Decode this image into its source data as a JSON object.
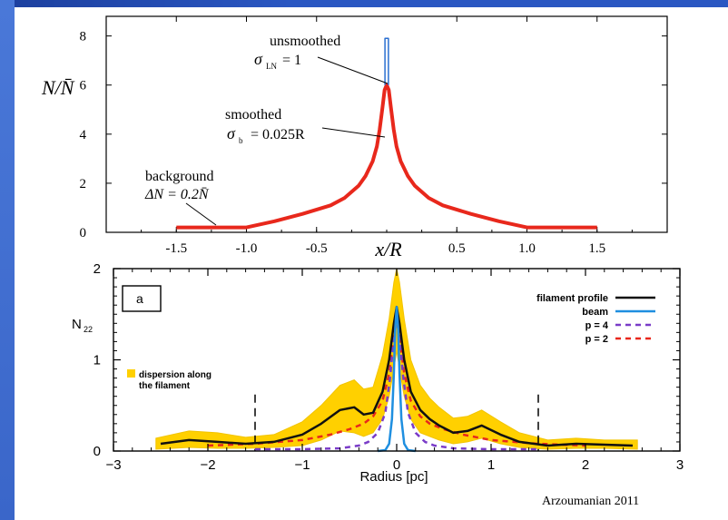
{
  "chart_data": [
    {
      "type": "line",
      "ylabel": "N/N̄",
      "xlabel": "x/R",
      "xlim": [
        -2.0,
        2.0
      ],
      "ylim": [
        0,
        8.8
      ],
      "x_ticks": [
        "-1.5",
        "-1.0",
        "-0.5",
        "0.5",
        "1.0",
        "1.5"
      ],
      "y_ticks": [
        "0",
        "2",
        "4",
        "6",
        "8"
      ],
      "annotations": {
        "unsmoothed": "unsmoothed",
        "sigma_ln": "= 1",
        "smoothed": "smoothed",
        "sigma_b": "= 0.025R",
        "background": "background",
        "delta_n": "ΔN = 0.2N̄"
      },
      "series": [
        {
          "name": "smoothed",
          "color": "#e8281c",
          "x": [
            -1.5,
            -1.2,
            -1.0,
            -0.8,
            -0.6,
            -0.4,
            -0.3,
            -0.2,
            -0.15,
            -0.1,
            -0.07,
            -0.05,
            -0.03,
            -0.015,
            0,
            0.015,
            0.03,
            0.05,
            0.07,
            0.1,
            0.15,
            0.2,
            0.3,
            0.4,
            0.6,
            0.8,
            1.0,
            1.2,
            1.5
          ],
          "y": [
            0.2,
            0.2,
            0.2,
            0.45,
            0.75,
            1.1,
            1.4,
            1.9,
            2.3,
            2.9,
            3.5,
            4.2,
            5.1,
            5.8,
            6.0,
            5.8,
            5.1,
            4.2,
            3.5,
            2.9,
            2.3,
            1.9,
            1.4,
            1.1,
            0.75,
            0.45,
            0.2,
            0.2,
            0.2
          ]
        },
        {
          "name": "unsmoothed",
          "color": "#2a6fd0",
          "x": [
            -0.012,
            -0.012,
            0.012,
            0.012
          ],
          "y": [
            6.0,
            7.9,
            7.9,
            6.0
          ]
        }
      ]
    },
    {
      "type": "line",
      "xlabel": "Radius [pc]",
      "ylabel": "N",
      "ylabel_sub": "22",
      "xlim": [
        -3,
        3
      ],
      "ylim": [
        0,
        2
      ],
      "x_ticks": [
        "−3",
        "−2",
        "−1",
        "0",
        "1",
        "2",
        "3"
      ],
      "y_ticks": [
        "0",
        "1",
        "2"
      ],
      "panel_label": "a",
      "dispersion_label_1": "dispersion along",
      "dispersion_label_2": "the filament",
      "vlines_x": [
        -1.5,
        1.5
      ],
      "series": [
        {
          "name": "filament profile",
          "color": "#111111",
          "dash": "",
          "x": [
            -2.5,
            -2.2,
            -1.9,
            -1.6,
            -1.3,
            -1.0,
            -0.8,
            -0.6,
            -0.45,
            -0.35,
            -0.25,
            -0.15,
            -0.08,
            -0.03,
            0,
            0.03,
            0.08,
            0.15,
            0.25,
            0.35,
            0.45,
            0.6,
            0.75,
            0.9,
            1.1,
            1.3,
            1.6,
            1.9,
            2.2,
            2.5
          ],
          "y": [
            0.08,
            0.12,
            0.1,
            0.08,
            0.1,
            0.18,
            0.3,
            0.45,
            0.48,
            0.4,
            0.42,
            0.65,
            1.0,
            1.4,
            1.58,
            1.4,
            1.0,
            0.65,
            0.45,
            0.35,
            0.28,
            0.2,
            0.22,
            0.28,
            0.18,
            0.1,
            0.06,
            0.08,
            0.07,
            0.06
          ]
        },
        {
          "name": "beam",
          "color": "#1f8fe0",
          "dash": "",
          "x": [
            -0.2,
            -0.12,
            -0.08,
            -0.05,
            -0.03,
            -0.015,
            0,
            0.015,
            0.03,
            0.05,
            0.08,
            0.12,
            0.2
          ],
          "y": [
            0,
            0.01,
            0.08,
            0.35,
            0.85,
            1.35,
            1.58,
            1.35,
            0.85,
            0.35,
            0.08,
            0.01,
            0
          ]
        },
        {
          "name": "p = 4",
          "color": "#7a3cc8",
          "dash": "6,5",
          "x": [
            -1.5,
            -1.0,
            -0.6,
            -0.4,
            -0.3,
            -0.2,
            -0.12,
            -0.07,
            -0.03,
            0,
            0.03,
            0.07,
            0.12,
            0.2,
            0.3,
            0.4,
            0.6,
            1.0,
            1.5
          ],
          "y": [
            0.02,
            0.02,
            0.03,
            0.06,
            0.1,
            0.2,
            0.42,
            0.8,
            1.25,
            1.45,
            1.25,
            0.8,
            0.42,
            0.2,
            0.1,
            0.06,
            0.03,
            0.02,
            0.02
          ]
        },
        {
          "name": "p = 2",
          "color": "#e8281c",
          "dash": "6,5",
          "x": [
            -2.0,
            -1.5,
            -1.0,
            -0.7,
            -0.5,
            -0.35,
            -0.25,
            -0.15,
            -0.08,
            -0.03,
            0,
            0.03,
            0.08,
            0.15,
            0.25,
            0.35,
            0.5,
            0.7,
            1.0,
            1.5,
            2.0
          ],
          "y": [
            0.06,
            0.08,
            0.12,
            0.18,
            0.24,
            0.3,
            0.38,
            0.55,
            0.85,
            1.25,
            1.5,
            1.25,
            0.85,
            0.55,
            0.38,
            0.3,
            0.24,
            0.18,
            0.12,
            0.08,
            0.06
          ]
        }
      ],
      "band_x": [
        -2.55,
        -2.2,
        -1.9,
        -1.6,
        -1.3,
        -1.0,
        -0.8,
        -0.6,
        -0.45,
        -0.35,
        -0.25,
        -0.15,
        -0.08,
        -0.03,
        0,
        0.03,
        0.08,
        0.15,
        0.25,
        0.35,
        0.45,
        0.6,
        0.75,
        0.9,
        1.1,
        1.3,
        1.6,
        1.9,
        2.2,
        2.55
      ],
      "band_lo": [
        0.02,
        0.04,
        0.03,
        0.03,
        0.04,
        0.06,
        0.12,
        0.22,
        0.2,
        0.16,
        0.2,
        0.35,
        0.6,
        0.9,
        1.1,
        0.9,
        0.6,
        0.35,
        0.2,
        0.16,
        0.12,
        0.08,
        0.1,
        0.14,
        0.08,
        0.04,
        0.02,
        0.03,
        0.03,
        0.02
      ],
      "band_hi": [
        0.14,
        0.22,
        0.2,
        0.15,
        0.18,
        0.32,
        0.5,
        0.72,
        0.78,
        0.68,
        0.7,
        1.05,
        1.45,
        1.85,
        2.0,
        1.85,
        1.45,
        1.0,
        0.72,
        0.58,
        0.48,
        0.36,
        0.38,
        0.45,
        0.32,
        0.2,
        0.12,
        0.14,
        0.12,
        0.12
      ]
    }
  ],
  "credit": "Arzoumanian 2011"
}
